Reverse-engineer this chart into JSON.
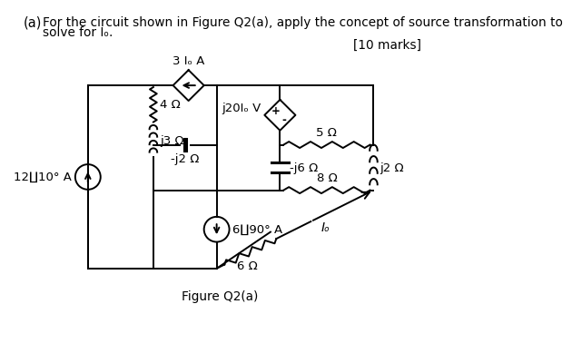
{
  "background_color": "#ffffff",
  "text_a": "(a)",
  "text_line1": "For the circuit shown in Figure Q2(a), apply the concept of source transformation to",
  "text_line2": "solve for Iₒ.",
  "marks": "[10 marks]",
  "figure_label": "Figure Q2(a)",
  "labels": {
    "dep_current": "3 Iₒ A",
    "cap_j2": "-j2 Ω",
    "dep_voltage": "j20Iₒ V",
    "r5": "5 Ω",
    "r4": "4 Ω",
    "ind_j2": "j2 Ω",
    "cap_j6": "-j6 Ω",
    "r8": "8 Ω",
    "r6": "6 Ω",
    "ind_j3": "j3 Ω",
    "src_12": "12∐10° A",
    "src_6": "6∐90° A",
    "Io": "Iₒ"
  },
  "nodes": {
    "xL": 112,
    "xLI": 205,
    "xML": 295,
    "xMR": 385,
    "xR": 518,
    "yT": 370,
    "yM1": 285,
    "yM2": 220,
    "yM3": 170,
    "yB": 108
  }
}
